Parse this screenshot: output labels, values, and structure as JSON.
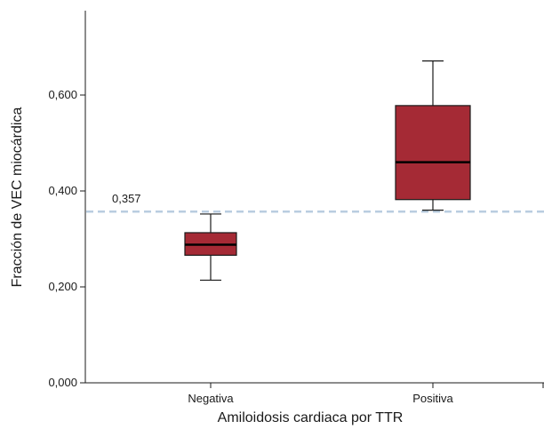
{
  "chart_data": {
    "type": "box",
    "xlabel": "Amiloidosis cardiaca por TTR",
    "ylabel": "Fracción de VEC miocárdica",
    "ylim": [
      0.0,
      0.75
    ],
    "yticks": [
      {
        "value": 0.0,
        "label": "0,000"
      },
      {
        "value": 0.2,
        "label": "0,200"
      },
      {
        "value": 0.4,
        "label": "0,400"
      },
      {
        "value": 0.6,
        "label": "0,600"
      }
    ],
    "categories": [
      "Negativa",
      "Positiva"
    ],
    "boxes": [
      {
        "category": "Negativa",
        "min": 0.214,
        "q1": 0.266,
        "median": 0.288,
        "q3": 0.313,
        "max": 0.352
      },
      {
        "category": "Positiva",
        "min": 0.36,
        "q1": 0.382,
        "median": 0.46,
        "q3": 0.578,
        "max": 0.671
      }
    ],
    "reference_line": {
      "value": 0.357,
      "label": "0,357",
      "style": "dashed",
      "color": "#b9cde0"
    },
    "box_color": "#a52a35",
    "grid": false
  }
}
